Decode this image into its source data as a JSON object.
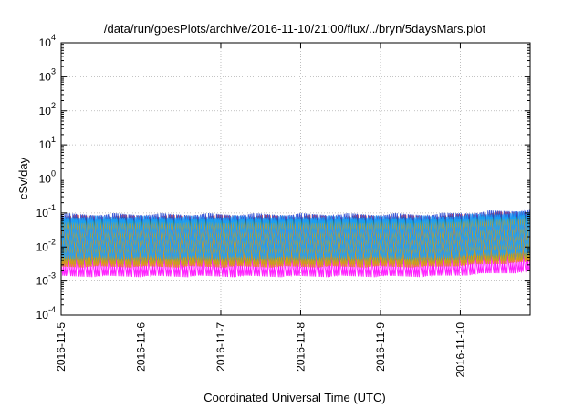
{
  "chart_data": {
    "type": "line",
    "title": "/data/run/goesPlots/archive/2016-11-10/21:00/flux/../bryn/5daysMars.plot",
    "xlabel": "Coordinated Universal Time (UTC)",
    "ylabel": "cSv/day",
    "yscale": "log",
    "ylim": [
      0.0001,
      10000
    ],
    "xlim": [
      "2016-11-05 00:00",
      "2016-11-10 21:00"
    ],
    "grid": true,
    "legend": "none",
    "x_ticks": [
      "2016-11-5",
      "2016-11-6",
      "2016-11-7",
      "2016-11-8",
      "2016-11-9",
      "2016-11-10"
    ],
    "y_ticks": [
      {
        "base": "10",
        "exp": "-4"
      },
      {
        "base": "10",
        "exp": "-3"
      },
      {
        "base": "10",
        "exp": "-2"
      },
      {
        "base": "10",
        "exp": "-1"
      },
      {
        "base": "10",
        "exp": "0"
      },
      {
        "base": "10",
        "exp": "1"
      },
      {
        "base": "10",
        "exp": "2"
      },
      {
        "base": "10",
        "exp": "3"
      },
      {
        "base": "10",
        "exp": "4"
      }
    ],
    "waveform": {
      "cycles_per_day": 10,
      "series_offsets_hours": [
        0.0,
        0.5,
        1.0,
        1.5
      ]
    },
    "series": [
      {
        "color": "#e03030",
        "peak": 0.09,
        "trough": 0.004
      },
      {
        "color": "#2ca02c",
        "peak": 0.08,
        "trough": 0.0035
      },
      {
        "color": "#1f3fd0",
        "peak": 0.1,
        "trough": 0.005
      },
      {
        "color": "#ff00ff",
        "peak": 0.045,
        "trough": 0.0013
      },
      {
        "color": "#20b0b0",
        "peak": 0.07,
        "trough": 0.003
      },
      {
        "color": "#e0a000",
        "peak": 0.06,
        "trough": 0.0025
      },
      {
        "color": "#1aa0ff",
        "peak": 0.085,
        "trough": 0.0045
      }
    ]
  }
}
